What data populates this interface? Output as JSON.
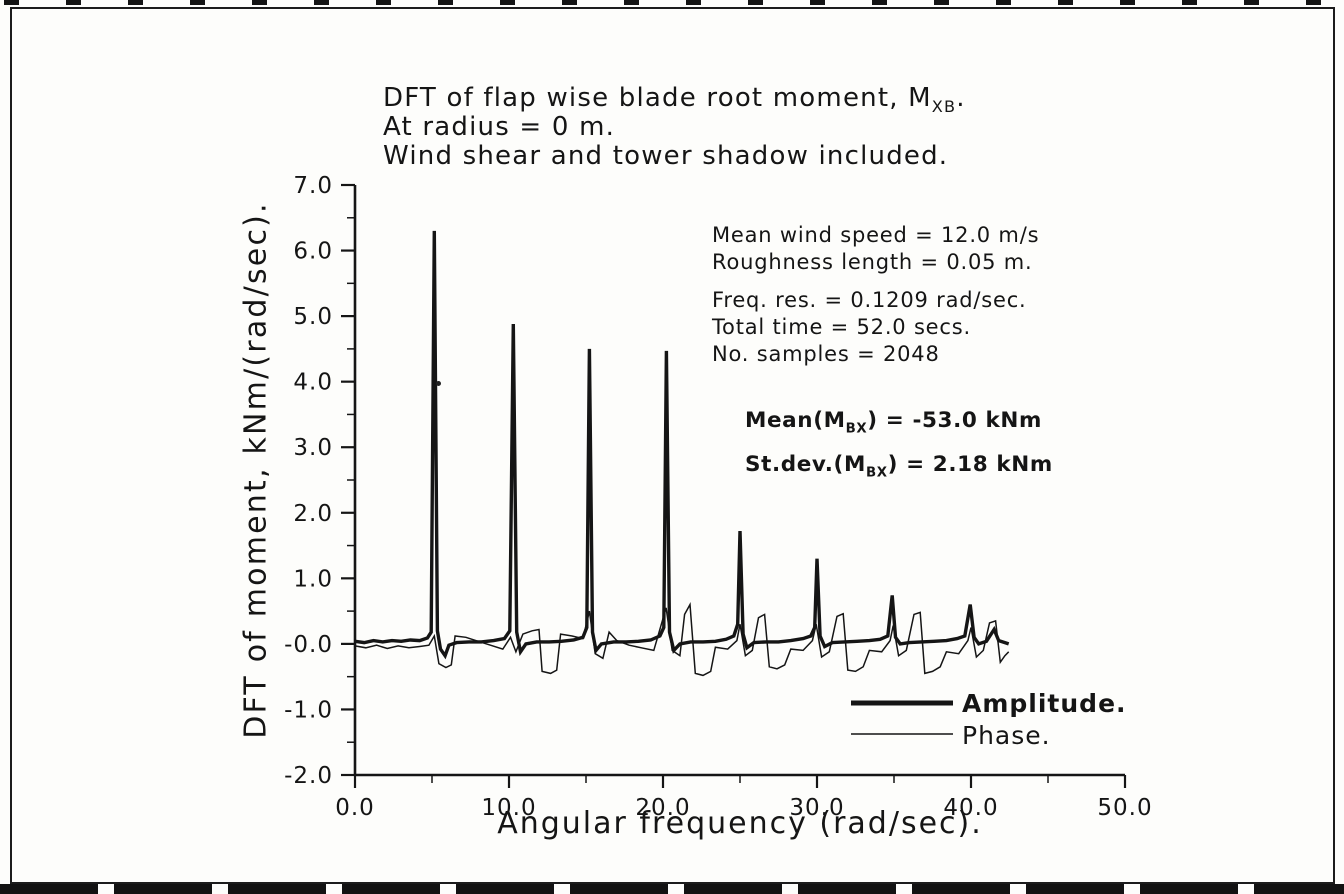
{
  "page": {
    "ink": "#151515",
    "paper": "#fdfdfb"
  },
  "title": {
    "lines": [
      {
        "segments": [
          {
            "text": "DFT of flap wise blade root moment, M"
          },
          {
            "text": "XB",
            "sub": true
          },
          {
            "text": "."
          }
        ]
      },
      {
        "segments": [
          {
            "text": "At radius = 0 m."
          }
        ]
      },
      {
        "segments": [
          {
            "text": "Wind shear and tower shadow included."
          }
        ]
      }
    ]
  },
  "info_block": {
    "lines_a": [
      "Mean wind speed = 12.0 m/s",
      "Roughness length = 0.05 m."
    ],
    "lines_b": [
      "Freq. res. = 0.1209 rad/sec.",
      "Total time = 52.0 secs.",
      "No. samples = 2048"
    ]
  },
  "stats": {
    "mean": {
      "segments": [
        {
          "text": "Mean(M"
        },
        {
          "text": "BX",
          "sub": true
        },
        {
          "text": ") = -53.0 kNm"
        }
      ]
    },
    "stdev": {
      "segments": [
        {
          "text": "St.dev.(M"
        },
        {
          "text": "BX",
          "sub": true
        },
        {
          "text": ") = 2.18 kNm"
        }
      ]
    }
  },
  "legend": {
    "items": [
      {
        "label": "Amplitude."
      },
      {
        "label": "Phase."
      }
    ]
  },
  "chart_data": {
    "type": "line",
    "title": "DFT of flap wise blade root moment, MXB.",
    "subtitle": [
      "At radius = 0 m.",
      "Wind shear and tower shadow included."
    ],
    "xlabel": "Angular frequency (rad/sec).",
    "ylabel": "DFT of moment, kNm/(rad/sec).",
    "xlim": [
      0,
      50
    ],
    "ylim": [
      -2,
      7
    ],
    "grid": false,
    "legend_position": "inside bottom-right",
    "x_major_ticks": [
      0,
      10,
      20,
      30,
      40,
      50
    ],
    "x_tick_labels": [
      "0.0",
      "10.0",
      "20.0",
      "30.0",
      "40.0",
      "50.0"
    ],
    "x_minor_step": 5,
    "y_major_ticks": [
      7,
      6,
      5,
      4,
      3,
      2,
      1,
      0,
      -1,
      -2
    ],
    "y_tick_labels": [
      "7.0",
      "6.0",
      "5.0",
      "4.0",
      "3.0",
      "2.0",
      "1.0",
      "-0.0",
      "-1.0",
      "-2.0"
    ],
    "peaks": {
      "x": [
        5.2,
        10.3,
        15.2,
        20.2,
        25.0,
        29.9,
        34.9,
        40.0
      ],
      "amplitude": [
        6.3,
        4.9,
        4.5,
        4.45,
        1.72,
        1.3,
        0.75,
        0.6
      ]
    },
    "series": [
      {
        "name": "Amplitude.",
        "stroke_width": 3.4,
        "points": [
          [
            0,
            0.04
          ],
          [
            0.6,
            0.02
          ],
          [
            1.2,
            0.05
          ],
          [
            1.8,
            0.03
          ],
          [
            2.4,
            0.05
          ],
          [
            3,
            0.04
          ],
          [
            3.6,
            0.06
          ],
          [
            4.2,
            0.05
          ],
          [
            4.7,
            0.09
          ],
          [
            4.95,
            0.18
          ],
          [
            5.15,
            6.3
          ],
          [
            5.35,
            0.2
          ],
          [
            5.55,
            -0.08
          ],
          [
            5.85,
            -0.18
          ],
          [
            6.1,
            -0.02
          ],
          [
            6.6,
            0.02
          ],
          [
            7.4,
            0.03
          ],
          [
            8.2,
            0.03
          ],
          [
            9,
            0.05
          ],
          [
            9.7,
            0.08
          ],
          [
            10.05,
            0.2
          ],
          [
            10.28,
            4.88
          ],
          [
            10.5,
            0.18
          ],
          [
            10.75,
            -0.12
          ],
          [
            11.1,
            0
          ],
          [
            11.8,
            0.03
          ],
          [
            12.6,
            0.03
          ],
          [
            13.4,
            0.04
          ],
          [
            14.2,
            0.06
          ],
          [
            14.8,
            0.1
          ],
          [
            15.05,
            0.25
          ],
          [
            15.22,
            4.5
          ],
          [
            15.42,
            0.18
          ],
          [
            15.65,
            -0.1
          ],
          [
            16,
            0
          ],
          [
            16.8,
            0.03
          ],
          [
            17.6,
            0.03
          ],
          [
            18.4,
            0.04
          ],
          [
            19.2,
            0.06
          ],
          [
            19.8,
            0.12
          ],
          [
            20.05,
            0.25
          ],
          [
            20.22,
            4.47
          ],
          [
            20.42,
            0.18
          ],
          [
            20.7,
            -0.1
          ],
          [
            21.1,
            0
          ],
          [
            21.8,
            0.03
          ],
          [
            22.6,
            0.03
          ],
          [
            23.4,
            0.04
          ],
          [
            24.1,
            0.07
          ],
          [
            24.6,
            0.12
          ],
          [
            24.85,
            0.3
          ],
          [
            25,
            1.72
          ],
          [
            25.2,
            0.15
          ],
          [
            25.45,
            -0.06
          ],
          [
            25.9,
            0.02
          ],
          [
            26.7,
            0.03
          ],
          [
            27.5,
            0.03
          ],
          [
            28.3,
            0.05
          ],
          [
            29.1,
            0.08
          ],
          [
            29.6,
            0.12
          ],
          [
            29.85,
            0.25
          ],
          [
            30,
            1.3
          ],
          [
            30.2,
            0.12
          ],
          [
            30.5,
            -0.04
          ],
          [
            31,
            0.02
          ],
          [
            31.8,
            0.03
          ],
          [
            32.6,
            0.04
          ],
          [
            33.4,
            0.05
          ],
          [
            34.1,
            0.07
          ],
          [
            34.6,
            0.12
          ],
          [
            34.88,
            0.74
          ],
          [
            35.1,
            0.1
          ],
          [
            35.4,
            0
          ],
          [
            36,
            0.02
          ],
          [
            36.8,
            0.03
          ],
          [
            37.6,
            0.04
          ],
          [
            38.4,
            0.05
          ],
          [
            39.1,
            0.08
          ],
          [
            39.6,
            0.12
          ],
          [
            39.95,
            0.6
          ],
          [
            40.2,
            0.1
          ],
          [
            40.5,
            0
          ],
          [
            41,
            0.04
          ],
          [
            41.5,
            0.22
          ],
          [
            41.8,
            0.05
          ],
          [
            42.2,
            0.02
          ],
          [
            42.45,
            0
          ]
        ]
      },
      {
        "name": "Phase.",
        "stroke_width": 1.5,
        "points": [
          [
            0,
            -0.03
          ],
          [
            0.7,
            -0.06
          ],
          [
            1.4,
            -0.02
          ],
          [
            2.1,
            -0.07
          ],
          [
            2.8,
            -0.03
          ],
          [
            3.5,
            -0.06
          ],
          [
            4.2,
            -0.04
          ],
          [
            4.8,
            -0.02
          ],
          [
            5.15,
            0.12
          ],
          [
            5.45,
            -0.3
          ],
          [
            5.9,
            -0.36
          ],
          [
            6.25,
            -0.32
          ],
          [
            6.5,
            0.12
          ],
          [
            7.2,
            0.1
          ],
          [
            8,
            0.04
          ],
          [
            8.8,
            -0.02
          ],
          [
            9.6,
            -0.08
          ],
          [
            10.1,
            0.1
          ],
          [
            10.45,
            -0.12
          ],
          [
            10.9,
            0.15
          ],
          [
            11.5,
            0.2
          ],
          [
            11.95,
            0.22
          ],
          [
            12.15,
            -0.42
          ],
          [
            12.7,
            -0.45
          ],
          [
            13.1,
            -0.4
          ],
          [
            13.35,
            0.15
          ],
          [
            14.1,
            0.12
          ],
          [
            14.8,
            0.08
          ],
          [
            15.22,
            0.5
          ],
          [
            15.6,
            -0.15
          ],
          [
            16.1,
            -0.22
          ],
          [
            16.5,
            0.18
          ],
          [
            17,
            0.05
          ],
          [
            17.8,
            -0.02
          ],
          [
            18.6,
            -0.06
          ],
          [
            19.4,
            -0.1
          ],
          [
            20.2,
            0.55
          ],
          [
            20.6,
            -0.1
          ],
          [
            21.1,
            -0.18
          ],
          [
            21.4,
            0.45
          ],
          [
            21.75,
            0.6
          ],
          [
            22.1,
            -0.45
          ],
          [
            22.6,
            -0.48
          ],
          [
            23.1,
            -0.42
          ],
          [
            23.4,
            -0.05
          ],
          [
            24.2,
            -0.08
          ],
          [
            24.8,
            0.05
          ],
          [
            25,
            0.3
          ],
          [
            25.35,
            -0.18
          ],
          [
            25.8,
            -0.1
          ],
          [
            26.2,
            0.4
          ],
          [
            26.6,
            0.45
          ],
          [
            26.9,
            -0.35
          ],
          [
            27.4,
            -0.38
          ],
          [
            27.9,
            -0.32
          ],
          [
            28.3,
            -0.08
          ],
          [
            29.1,
            -0.1
          ],
          [
            29.7,
            0.05
          ],
          [
            29.95,
            0.3
          ],
          [
            30.3,
            -0.2
          ],
          [
            30.8,
            -0.12
          ],
          [
            31.3,
            0.42
          ],
          [
            31.7,
            0.46
          ],
          [
            32,
            -0.4
          ],
          [
            32.5,
            -0.42
          ],
          [
            33,
            -0.35
          ],
          [
            33.4,
            -0.1
          ],
          [
            34.2,
            -0.12
          ],
          [
            34.75,
            0.05
          ],
          [
            34.95,
            0.28
          ],
          [
            35.3,
            -0.18
          ],
          [
            35.8,
            -0.1
          ],
          [
            36.3,
            0.45
          ],
          [
            36.7,
            0.48
          ],
          [
            37,
            -0.45
          ],
          [
            37.5,
            -0.42
          ],
          [
            38,
            -0.35
          ],
          [
            38.4,
            -0.12
          ],
          [
            39.2,
            -0.15
          ],
          [
            39.8,
            0.05
          ],
          [
            40,
            0.25
          ],
          [
            40.35,
            -0.2
          ],
          [
            40.8,
            -0.1
          ],
          [
            41.2,
            0.32
          ],
          [
            41.6,
            0.35
          ],
          [
            41.9,
            -0.28
          ],
          [
            42.2,
            -0.18
          ],
          [
            42.45,
            -0.12
          ]
        ]
      }
    ]
  }
}
